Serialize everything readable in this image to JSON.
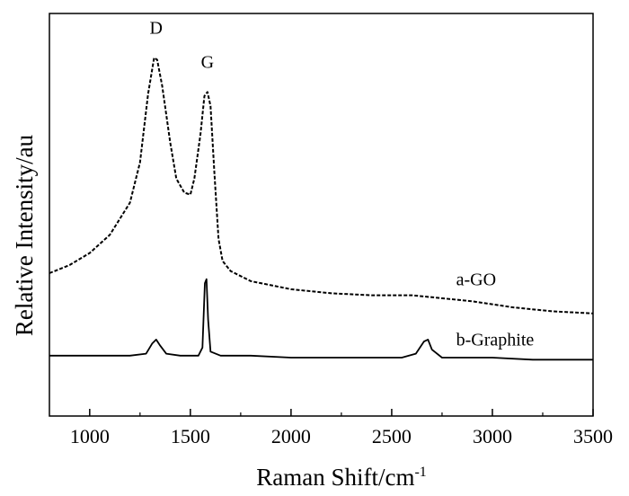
{
  "chart_data": {
    "type": "line",
    "xlabel": "Raman Shift/cm",
    "xlabel_sup": "-1",
    "ylabel": "Relative Intensity/au",
    "xlim": [
      800,
      3500
    ],
    "ylim": [
      0,
      100
    ],
    "x_ticks": [
      1000,
      1500,
      2000,
      2500,
      3000,
      3500
    ],
    "y_tick_labels": false,
    "grid": false,
    "series": [
      {
        "name": "a-GO",
        "style": "dashed",
        "points": [
          [
            800,
            35.5
          ],
          [
            900,
            37.5
          ],
          [
            1000,
            40.5
          ],
          [
            1100,
            45
          ],
          [
            1200,
            53
          ],
          [
            1250,
            63
          ],
          [
            1290,
            80
          ],
          [
            1320,
            89
          ],
          [
            1335,
            88.5
          ],
          [
            1360,
            82
          ],
          [
            1400,
            68
          ],
          [
            1430,
            59
          ],
          [
            1470,
            55.5
          ],
          [
            1500,
            55
          ],
          [
            1520,
            59
          ],
          [
            1550,
            70
          ],
          [
            1570,
            79.5
          ],
          [
            1585,
            80.5
          ],
          [
            1600,
            77
          ],
          [
            1620,
            60
          ],
          [
            1640,
            44
          ],
          [
            1660,
            38.5
          ],
          [
            1700,
            36
          ],
          [
            1800,
            33.5
          ],
          [
            1900,
            32.5
          ],
          [
            2000,
            31.5
          ],
          [
            2200,
            30.5
          ],
          [
            2400,
            30
          ],
          [
            2600,
            30
          ],
          [
            2700,
            29.5
          ],
          [
            2900,
            28.5
          ],
          [
            3100,
            27
          ],
          [
            3300,
            26
          ],
          [
            3500,
            25.5
          ]
        ]
      },
      {
        "name": "b-Graphite",
        "style": "solid",
        "points": [
          [
            800,
            15
          ],
          [
            1000,
            15
          ],
          [
            1200,
            15
          ],
          [
            1280,
            15.5
          ],
          [
            1310,
            18
          ],
          [
            1330,
            19
          ],
          [
            1350,
            17.5
          ],
          [
            1380,
            15.5
          ],
          [
            1450,
            15
          ],
          [
            1540,
            15
          ],
          [
            1560,
            17
          ],
          [
            1572,
            33
          ],
          [
            1580,
            34
          ],
          [
            1588,
            24
          ],
          [
            1600,
            16
          ],
          [
            1650,
            15
          ],
          [
            1800,
            15
          ],
          [
            2000,
            14.5
          ],
          [
            2400,
            14.5
          ],
          [
            2550,
            14.5
          ],
          [
            2620,
            15.5
          ],
          [
            2660,
            18.5
          ],
          [
            2680,
            19
          ],
          [
            2700,
            16.5
          ],
          [
            2750,
            14.5
          ],
          [
            3000,
            14.5
          ],
          [
            3200,
            14
          ],
          [
            3500,
            14
          ]
        ]
      }
    ],
    "annotations": [
      {
        "text": "D",
        "x": 1330,
        "y": 95
      },
      {
        "text": "G",
        "x": 1585,
        "y": 86.5
      },
      {
        "text": "a-GO",
        "x": 2820,
        "y": 32.5
      },
      {
        "text": "b-Graphite",
        "x": 2820,
        "y": 17.5
      }
    ]
  }
}
